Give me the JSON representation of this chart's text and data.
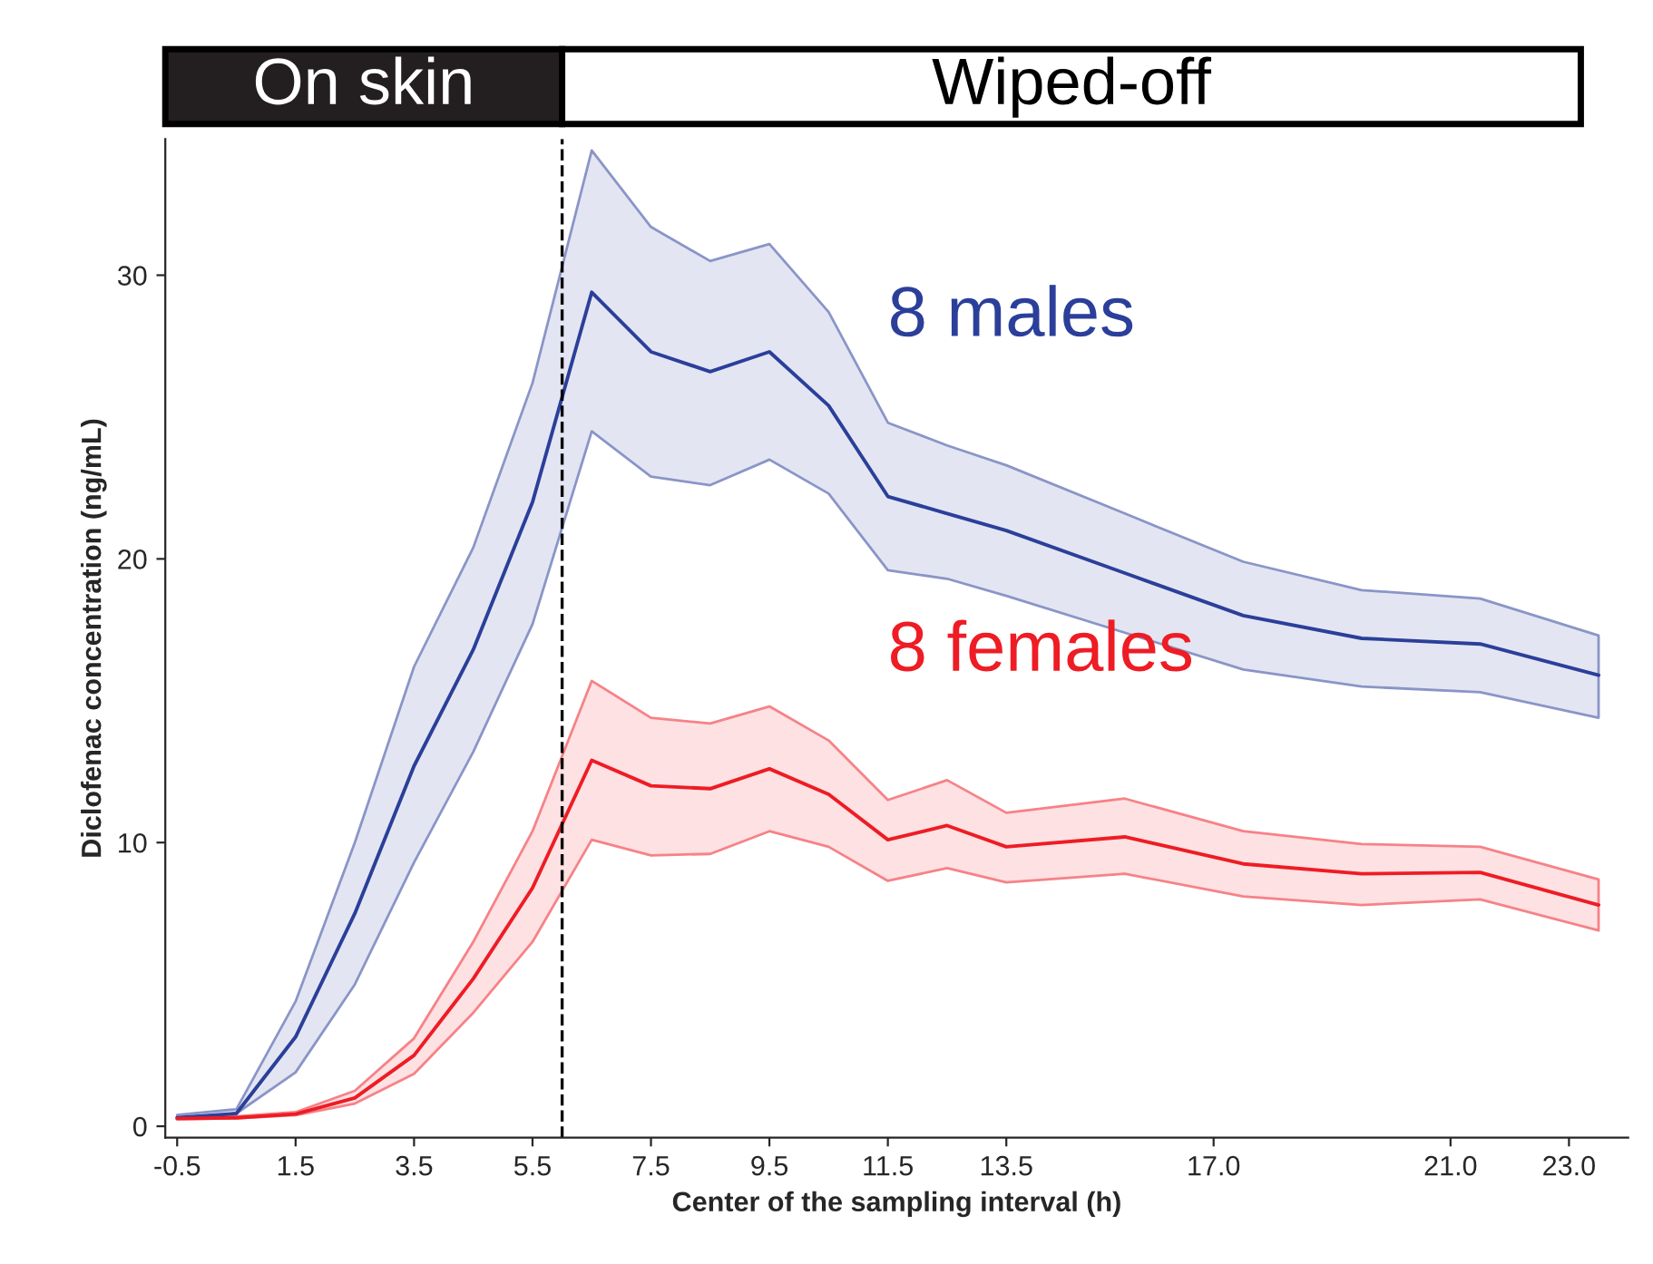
{
  "chart_data": {
    "type": "line",
    "xlabel": "Center of the sampling interval (h)",
    "ylabel": "Diclofenac concentration (ng/mL)",
    "x": [
      -0.5,
      0.5,
      1.5,
      2.5,
      3.5,
      4.5,
      5.5,
      6.5,
      7.5,
      8.5,
      9.5,
      10.5,
      11.5,
      12.5,
      13.5,
      15.5,
      17.5,
      19.5,
      21.5,
      23.5
    ],
    "series": [
      {
        "name": "8 males",
        "color": "#2b3f9a",
        "values": [
          0.3,
          0.45,
          3.15,
          7.5,
          12.7,
          16.8,
          22.0,
          29.4,
          27.3,
          26.6,
          27.3,
          25.4,
          22.2,
          21.6,
          21.0,
          19.5,
          18.0,
          17.2,
          17.0,
          15.9
        ],
        "lower": [
          0.3,
          0.45,
          1.9,
          5.0,
          9.3,
          13.2,
          17.7,
          24.5,
          22.9,
          22.6,
          23.5,
          22.3,
          19.6,
          19.3,
          18.7,
          17.4,
          16.1,
          15.5,
          15.3,
          14.4
        ],
        "upper": [
          0.4,
          0.6,
          4.4,
          10.0,
          16.2,
          20.4,
          26.2,
          34.4,
          31.7,
          30.5,
          31.1,
          28.7,
          24.8,
          24.0,
          23.3,
          21.6,
          19.9,
          18.9,
          18.6,
          17.3
        ]
      },
      {
        "name": "8 females",
        "color": "#ee1c24",
        "values": [
          0.27,
          0.3,
          0.43,
          1.0,
          2.5,
          5.2,
          8.4,
          12.9,
          12.0,
          11.9,
          12.6,
          11.7,
          10.1,
          10.6,
          9.85,
          10.2,
          9.25,
          8.9,
          8.95,
          7.8
        ],
        "lower": [
          0.25,
          0.28,
          0.39,
          0.8,
          1.85,
          4.0,
          6.5,
          10.1,
          9.55,
          9.6,
          10.4,
          9.85,
          8.65,
          9.1,
          8.6,
          8.9,
          8.1,
          7.8,
          8.0,
          6.9
        ],
        "upper": [
          0.3,
          0.35,
          0.5,
          1.25,
          3.1,
          6.5,
          10.4,
          15.7,
          14.4,
          14.2,
          14.8,
          13.6,
          11.5,
          12.2,
          11.05,
          11.55,
          10.4,
          9.95,
          9.85,
          8.7
        ]
      }
    ],
    "xlim": [
      -0.7,
      24.0
    ],
    "xticks": [
      -0.5,
      1.5,
      3.5,
      5.5,
      7.5,
      9.5,
      11.5,
      13.5,
      {
        "value": 17.0,
        "label": "17.0"
      },
      {
        "value": 21.0,
        "label": "21.0"
      },
      {
        "value": 23.0,
        "label": "23.0"
      }
    ],
    "ylim": [
      -0.4,
      34.8
    ],
    "yticks": [
      0,
      10,
      20,
      30
    ],
    "ref_lines": [
      {
        "axis": "x",
        "value": 6.0,
        "color": "#000000",
        "line_style": "dashed"
      }
    ],
    "annotations": [
      "On skin",
      "Wiped-off"
    ],
    "grid": false,
    "legend": false,
    "line_style": "solid",
    "marker": "none"
  }
}
